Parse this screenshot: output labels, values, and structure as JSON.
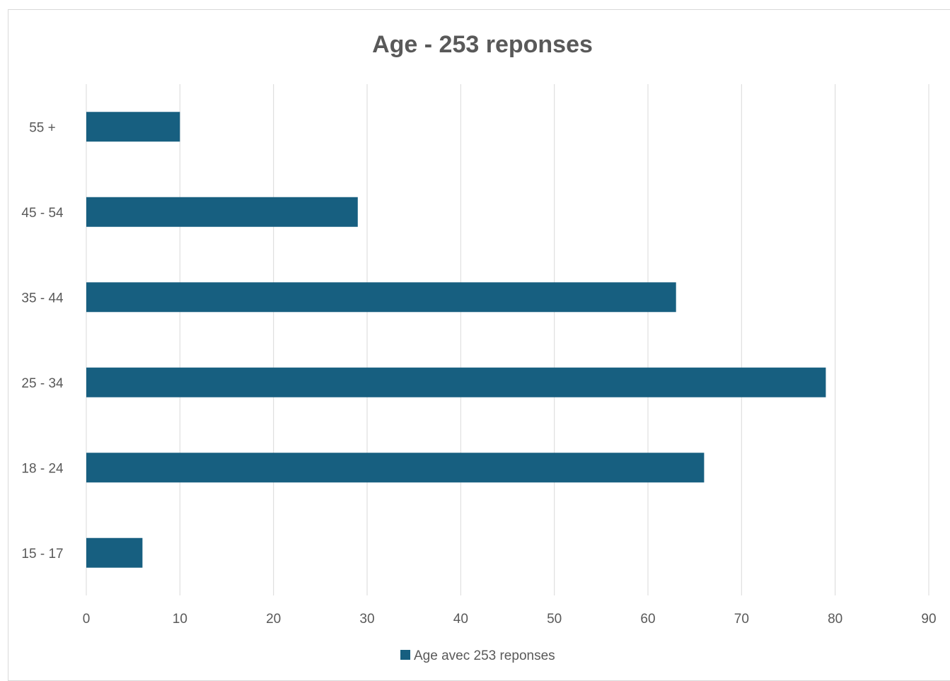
{
  "chart_data": {
    "type": "bar",
    "orientation": "horizontal",
    "title": "Age - 253 reponses",
    "categories": [
      "15 - 17",
      "18 - 24",
      "25 - 34",
      "35 - 44",
      "45 - 54",
      "55 +"
    ],
    "series": [
      {
        "name": "Age avec 253 reponses",
        "values": [
          6,
          66,
          79,
          63,
          29,
          10
        ],
        "color": "#175f80"
      }
    ],
    "xlabel": "",
    "ylabel": "",
    "xlim": [
      0,
      90
    ],
    "xticks": [
      0,
      10,
      20,
      30,
      40,
      50,
      60,
      70,
      80,
      90
    ],
    "grid": "vertical",
    "legend_position": "bottom"
  }
}
